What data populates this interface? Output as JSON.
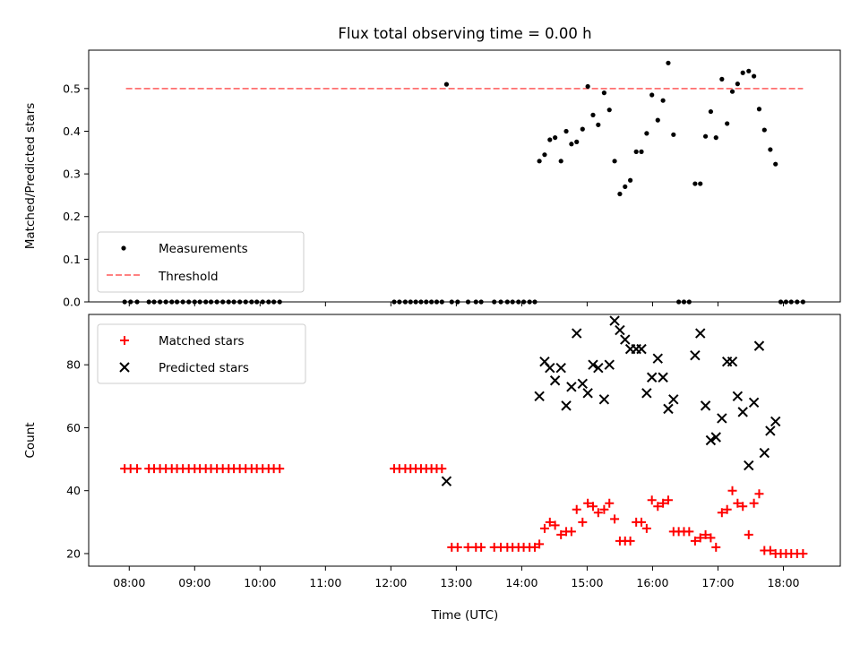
{
  "chart_data": [
    {
      "type": "scatter",
      "title": "Flux total observing time = 0.00 h",
      "xlabel": "",
      "ylabel": "Matched/Predicted stars",
      "ylim": [
        0,
        0.59
      ],
      "yticks": [
        "0.0",
        "0.1",
        "0.2",
        "0.3",
        "0.4",
        "0.5"
      ],
      "ytick_values": [
        0,
        0.1,
        0.2,
        0.3,
        0.4,
        0.5
      ],
      "legend": {
        "placement": "lower-left",
        "entries": [
          "Measurements",
          "Threshold"
        ]
      },
      "threshold": {
        "name": "Threshold",
        "value": 0.5,
        "x_range": [
          7.95,
          18.3
        ],
        "color": "#ff7070"
      },
      "series": [
        {
          "name": "Measurements",
          "color": "#000000",
          "points": [
            [
              7.93,
              0
            ],
            [
              8.02,
              0
            ],
            [
              8.12,
              0
            ],
            [
              8.3,
              0
            ],
            [
              8.38,
              0
            ],
            [
              8.47,
              0
            ],
            [
              8.56,
              0
            ],
            [
              8.65,
              0
            ],
            [
              8.73,
              0
            ],
            [
              8.82,
              0
            ],
            [
              8.91,
              0
            ],
            [
              9.0,
              0
            ],
            [
              9.08,
              0
            ],
            [
              9.17,
              0
            ],
            [
              9.25,
              0
            ],
            [
              9.34,
              0
            ],
            [
              9.43,
              0
            ],
            [
              9.52,
              0
            ],
            [
              9.6,
              0
            ],
            [
              9.69,
              0
            ],
            [
              9.78,
              0
            ],
            [
              9.87,
              0
            ],
            [
              9.95,
              0
            ],
            [
              10.04,
              0
            ],
            [
              10.13,
              0
            ],
            [
              10.21,
              0
            ],
            [
              10.3,
              0
            ],
            [
              12.05,
              0
            ],
            [
              12.13,
              0
            ],
            [
              12.22,
              0
            ],
            [
              12.3,
              0
            ],
            [
              12.38,
              0
            ],
            [
              12.46,
              0
            ],
            [
              12.54,
              0
            ],
            [
              12.62,
              0
            ],
            [
              12.7,
              0
            ],
            [
              12.78,
              0
            ],
            [
              12.85,
              0.51
            ],
            [
              12.93,
              0
            ],
            [
              13.02,
              0
            ],
            [
              13.18,
              0
            ],
            [
              13.3,
              0
            ],
            [
              13.38,
              0
            ],
            [
              13.58,
              0
            ],
            [
              13.68,
              0
            ],
            [
              13.78,
              0
            ],
            [
              13.86,
              0
            ],
            [
              13.95,
              0
            ],
            [
              14.03,
              0
            ],
            [
              14.12,
              0
            ],
            [
              14.2,
              0
            ],
            [
              14.27,
              0.33
            ],
            [
              14.35,
              0.345
            ],
            [
              14.43,
              0.38
            ],
            [
              14.51,
              0.385
            ],
            [
              14.6,
              0.33
            ],
            [
              14.68,
              0.4
            ],
            [
              14.76,
              0.37
            ],
            [
              14.84,
              0.375
            ],
            [
              14.93,
              0.405
            ],
            [
              15.01,
              0.505
            ],
            [
              15.09,
              0.438
            ],
            [
              15.17,
              0.415
            ],
            [
              15.26,
              0.49
            ],
            [
              15.34,
              0.45
            ],
            [
              15.42,
              0.33
            ],
            [
              15.5,
              0.253
            ],
            [
              15.58,
              0.27
            ],
            [
              15.66,
              0.285
            ],
            [
              15.75,
              0.352
            ],
            [
              15.83,
              0.352
            ],
            [
              15.91,
              0.395
            ],
            [
              15.99,
              0.485
            ],
            [
              16.08,
              0.426
            ],
            [
              16.16,
              0.472
            ],
            [
              16.24,
              0.56
            ],
            [
              16.32,
              0.392
            ],
            [
              16.4,
              0
            ],
            [
              16.48,
              0
            ],
            [
              16.56,
              0
            ],
            [
              16.65,
              0.277
            ],
            [
              16.73,
              0.277
            ],
            [
              16.81,
              0.388
            ],
            [
              16.89,
              0.446
            ],
            [
              16.97,
              0.385
            ],
            [
              17.06,
              0.522
            ],
            [
              17.14,
              0.418
            ],
            [
              17.22,
              0.493
            ],
            [
              17.3,
              0.511
            ],
            [
              17.38,
              0.537
            ],
            [
              17.47,
              0.541
            ],
            [
              17.55,
              0.529
            ],
            [
              17.63,
              0.452
            ],
            [
              17.71,
              0.403
            ],
            [
              17.8,
              0.357
            ],
            [
              17.88,
              0.323
            ],
            [
              17.96,
              0
            ],
            [
              18.04,
              0
            ],
            [
              18.12,
              0
            ],
            [
              18.21,
              0
            ],
            [
              18.3,
              0
            ]
          ]
        }
      ]
    },
    {
      "type": "scatter",
      "title": "",
      "xlabel": "Time (UTC)",
      "ylabel": "Count",
      "ylim": [
        16,
        96
      ],
      "yticks": [
        "20",
        "40",
        "60",
        "80"
      ],
      "ytick_values": [
        20,
        40,
        60,
        80
      ],
      "xlim": [
        7.38,
        18.87
      ],
      "xticks": [
        "08:00",
        "09:00",
        "10:00",
        "11:00",
        "12:00",
        "13:00",
        "14:00",
        "15:00",
        "16:00",
        "17:00",
        "18:00"
      ],
      "xtick_values": [
        8,
        9,
        10,
        11,
        12,
        13,
        14,
        15,
        16,
        17,
        18
      ],
      "legend": {
        "placement": "top-left",
        "entries": [
          "Matched stars",
          "Predicted stars"
        ]
      },
      "series": [
        {
          "name": "Matched stars",
          "marker": "plus",
          "color": "#ff0000",
          "points": [
            [
              7.93,
              47
            ],
            [
              8.02,
              47
            ],
            [
              8.12,
              47
            ],
            [
              8.3,
              47
            ],
            [
              8.38,
              47
            ],
            [
              8.47,
              47
            ],
            [
              8.56,
              47
            ],
            [
              8.65,
              47
            ],
            [
              8.73,
              47
            ],
            [
              8.82,
              47
            ],
            [
              8.91,
              47
            ],
            [
              9.0,
              47
            ],
            [
              9.08,
              47
            ],
            [
              9.17,
              47
            ],
            [
              9.25,
              47
            ],
            [
              9.34,
              47
            ],
            [
              9.43,
              47
            ],
            [
              9.52,
              47
            ],
            [
              9.6,
              47
            ],
            [
              9.69,
              47
            ],
            [
              9.78,
              47
            ],
            [
              9.87,
              47
            ],
            [
              9.95,
              47
            ],
            [
              10.04,
              47
            ],
            [
              10.13,
              47
            ],
            [
              10.21,
              47
            ],
            [
              10.3,
              47
            ],
            [
              12.05,
              47
            ],
            [
              12.13,
              47
            ],
            [
              12.22,
              47
            ],
            [
              12.3,
              47
            ],
            [
              12.38,
              47
            ],
            [
              12.46,
              47
            ],
            [
              12.54,
              47
            ],
            [
              12.62,
              47
            ],
            [
              12.7,
              47
            ],
            [
              12.78,
              47
            ],
            [
              12.93,
              22
            ],
            [
              13.02,
              22
            ],
            [
              13.18,
              22
            ],
            [
              13.3,
              22
            ],
            [
              13.38,
              22
            ],
            [
              13.58,
              22
            ],
            [
              13.68,
              22
            ],
            [
              13.78,
              22
            ],
            [
              13.86,
              22
            ],
            [
              13.95,
              22
            ],
            [
              14.03,
              22
            ],
            [
              14.12,
              22
            ],
            [
              14.2,
              22
            ],
            [
              14.27,
              23
            ],
            [
              14.35,
              28
            ],
            [
              14.43,
              30
            ],
            [
              14.51,
              29
            ],
            [
              14.6,
              26
            ],
            [
              14.68,
              27
            ],
            [
              14.76,
              27
            ],
            [
              14.84,
              34
            ],
            [
              14.93,
              30
            ],
            [
              15.01,
              36
            ],
            [
              15.09,
              35
            ],
            [
              15.17,
              33
            ],
            [
              15.26,
              34
            ],
            [
              15.34,
              36
            ],
            [
              15.42,
              31
            ],
            [
              15.5,
              24
            ],
            [
              15.58,
              24
            ],
            [
              15.66,
              24
            ],
            [
              15.75,
              30
            ],
            [
              15.83,
              30
            ],
            [
              15.91,
              28
            ],
            [
              15.99,
              37
            ],
            [
              16.08,
              35
            ],
            [
              16.16,
              36
            ],
            [
              16.24,
              37
            ],
            [
              16.32,
              27
            ],
            [
              16.4,
              27
            ],
            [
              16.48,
              27
            ],
            [
              16.56,
              27
            ],
            [
              16.65,
              24
            ],
            [
              16.73,
              25
            ],
            [
              16.81,
              26
            ],
            [
              16.89,
              25
            ],
            [
              16.97,
              22
            ],
            [
              17.06,
              33
            ],
            [
              17.14,
              34
            ],
            [
              17.22,
              40
            ],
            [
              17.3,
              36
            ],
            [
              17.38,
              35
            ],
            [
              17.47,
              26
            ],
            [
              17.55,
              36
            ],
            [
              17.63,
              39
            ],
            [
              17.71,
              21
            ],
            [
              17.8,
              21
            ],
            [
              17.88,
              20
            ],
            [
              17.96,
              20
            ],
            [
              18.04,
              20
            ],
            [
              18.12,
              20
            ],
            [
              18.21,
              20
            ],
            [
              18.3,
              20
            ]
          ]
        },
        {
          "name": "Predicted stars",
          "marker": "x",
          "color": "#000000",
          "points": [
            [
              12.85,
              43
            ],
            [
              14.27,
              70
            ],
            [
              14.35,
              81
            ],
            [
              14.43,
              79
            ],
            [
              14.51,
              75
            ],
            [
              14.6,
              79
            ],
            [
              14.68,
              67
            ],
            [
              14.76,
              73
            ],
            [
              14.84,
              90
            ],
            [
              14.93,
              74
            ],
            [
              15.01,
              71
            ],
            [
              15.09,
              80
            ],
            [
              15.17,
              79
            ],
            [
              15.26,
              69
            ],
            [
              15.34,
              80
            ],
            [
              15.42,
              94
            ],
            [
              15.5,
              91
            ],
            [
              15.58,
              88
            ],
            [
              15.66,
              85
            ],
            [
              15.75,
              85
            ],
            [
              15.83,
              85
            ],
            [
              15.91,
              71
            ],
            [
              15.99,
              76
            ],
            [
              16.08,
              82
            ],
            [
              16.16,
              76
            ],
            [
              16.24,
              66
            ],
            [
              16.32,
              69
            ],
            [
              16.65,
              83
            ],
            [
              16.73,
              90
            ],
            [
              16.81,
              67
            ],
            [
              16.89,
              56
            ],
            [
              16.97,
              57
            ],
            [
              17.06,
              63
            ],
            [
              17.14,
              81
            ],
            [
              17.22,
              81
            ],
            [
              17.3,
              70
            ],
            [
              17.38,
              65
            ],
            [
              17.47,
              48
            ],
            [
              17.55,
              68
            ],
            [
              17.63,
              86
            ],
            [
              17.71,
              52
            ],
            [
              17.8,
              59
            ],
            [
              17.88,
              62
            ]
          ]
        }
      ]
    }
  ]
}
